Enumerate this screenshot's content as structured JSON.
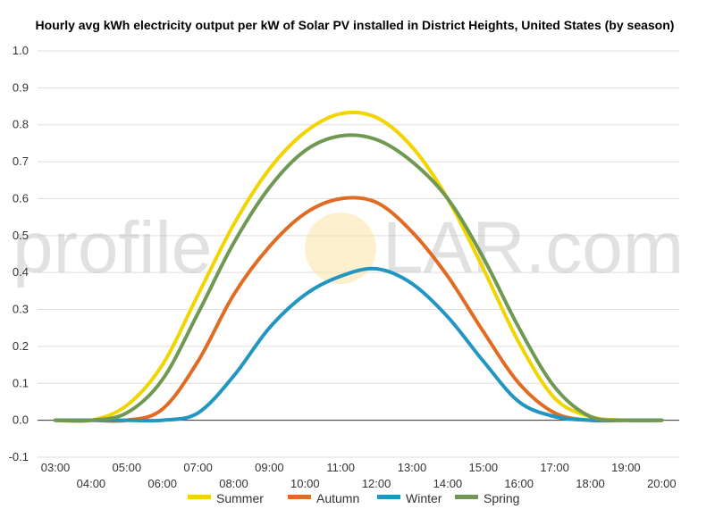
{
  "chart_data": {
    "type": "line",
    "title": "Hourly avg kWh electricity output per kW of Solar PV installed in District Heights, United States (by season)",
    "xlabel": "",
    "ylabel": "",
    "x": [
      "03:00",
      "04:00",
      "05:00",
      "06:00",
      "07:00",
      "08:00",
      "09:00",
      "10:00",
      "11:00",
      "12:00",
      "13:00",
      "14:00",
      "15:00",
      "16:00",
      "17:00",
      "18:00",
      "19:00",
      "20:00"
    ],
    "ylim": [
      -0.1,
      1.0
    ],
    "yticks": [
      "1.0",
      "0.9",
      "0.8",
      "0.7",
      "0.6",
      "0.5",
      "0.4",
      "0.3",
      "0.2",
      "0.1",
      "0.0",
      "-0.1"
    ],
    "grid": true,
    "legend_position": "bottom",
    "series": [
      {
        "name": "Summer",
        "color": "#f2d400",
        "values": [
          0.0,
          0.0,
          0.04,
          0.15,
          0.34,
          0.53,
          0.68,
          0.78,
          0.83,
          0.82,
          0.74,
          0.6,
          0.41,
          0.21,
          0.06,
          0.01,
          0.0,
          0.0
        ]
      },
      {
        "name": "Autumn",
        "color": "#e06c24",
        "values": [
          0.0,
          0.0,
          0.0,
          0.03,
          0.16,
          0.34,
          0.47,
          0.56,
          0.6,
          0.59,
          0.51,
          0.39,
          0.24,
          0.1,
          0.02,
          0.0,
          0.0,
          0.0
        ]
      },
      {
        "name": "Winter",
        "color": "#2196c1",
        "values": [
          0.0,
          0.0,
          0.0,
          0.0,
          0.02,
          0.12,
          0.25,
          0.34,
          0.39,
          0.41,
          0.37,
          0.28,
          0.16,
          0.05,
          0.01,
          0.0,
          0.0,
          0.0
        ]
      },
      {
        "name": "Spring",
        "color": "#6f9953",
        "values": [
          0.0,
          0.0,
          0.02,
          0.11,
          0.29,
          0.48,
          0.63,
          0.73,
          0.77,
          0.76,
          0.7,
          0.6,
          0.44,
          0.25,
          0.09,
          0.01,
          0.0,
          0.0
        ]
      }
    ]
  },
  "watermark": {
    "left": "profile",
    "right": "LAR.com"
  }
}
